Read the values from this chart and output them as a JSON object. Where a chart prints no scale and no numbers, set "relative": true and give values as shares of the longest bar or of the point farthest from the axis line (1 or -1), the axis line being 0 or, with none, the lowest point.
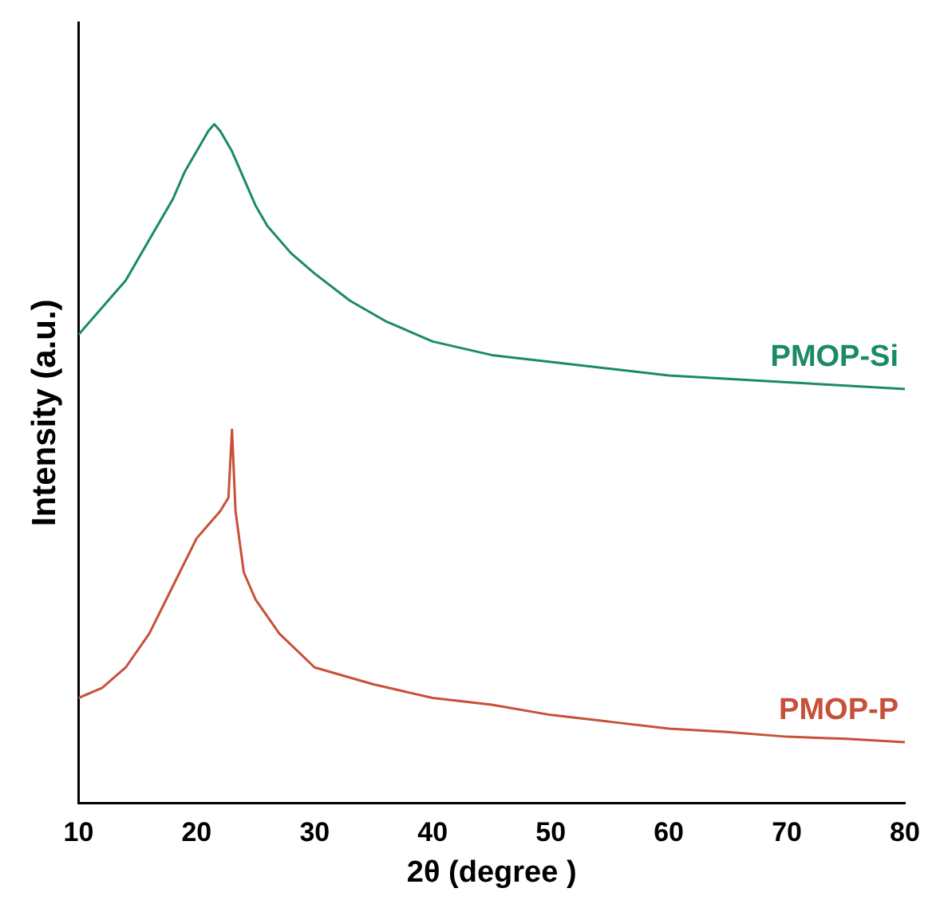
{
  "chart_data": {
    "type": "line",
    "xlabel": "2θ (degree )",
    "ylabel": "Intensity (a.u.)",
    "relative": true,
    "xlim": [
      10,
      80
    ],
    "xticks": [
      10,
      20,
      30,
      40,
      50,
      60,
      70,
      80
    ],
    "grid": false,
    "legend": false,
    "marker": "none",
    "series": [
      {
        "name": "PMOP-Si",
        "color": "#1a8a68",
        "x": [
          10,
          12,
          14,
          16,
          18,
          19,
          20,
          21,
          21.5,
          22,
          23,
          24,
          25,
          26,
          28,
          30,
          33,
          36,
          40,
          45,
          50,
          55,
          60,
          65,
          70,
          75,
          80
        ],
        "values": [
          0.69,
          0.73,
          0.77,
          0.83,
          0.89,
          0.93,
          0.96,
          0.99,
          1.0,
          0.99,
          0.96,
          0.92,
          0.88,
          0.85,
          0.81,
          0.78,
          0.74,
          0.71,
          0.68,
          0.66,
          0.65,
          0.64,
          0.63,
          0.625,
          0.62,
          0.615,
          0.61
        ]
      },
      {
        "name": "PMOP-P",
        "color": "#c8503a",
        "x": [
          10,
          12,
          14,
          16,
          18,
          20,
          21,
          22,
          22.7,
          23,
          23.3,
          24,
          25,
          27,
          30,
          35,
          40,
          45,
          50,
          55,
          60,
          65,
          70,
          75,
          80
        ],
        "values": [
          0.155,
          0.17,
          0.2,
          0.25,
          0.32,
          0.39,
          0.41,
          0.43,
          0.45,
          0.55,
          0.43,
          0.34,
          0.3,
          0.25,
          0.2,
          0.175,
          0.155,
          0.145,
          0.13,
          0.12,
          0.11,
          0.105,
          0.098,
          0.095,
          0.09
        ]
      }
    ]
  }
}
